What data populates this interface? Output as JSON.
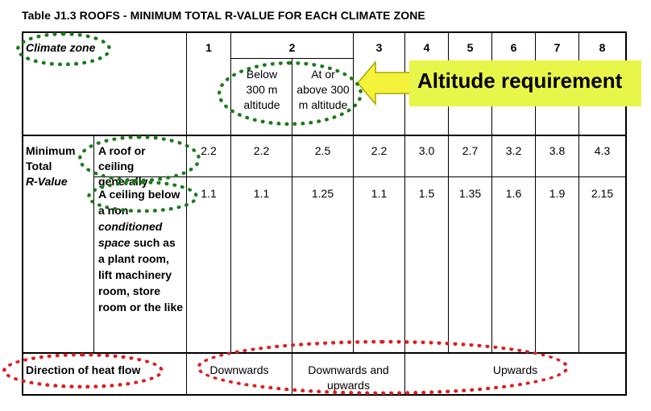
{
  "table": {
    "title": "Table J1.3 ROOFS - MINIMUM TOTAL R-VALUE FOR EACH CLIMATE ZONE",
    "climate_zone_label": "Climate zone",
    "zones": [
      "1",
      "2",
      "3",
      "4",
      "5",
      "6",
      "7",
      "8"
    ],
    "zone2_sub": [
      "Below 300 m altitude",
      "At or above 300 m altitude"
    ],
    "row_group_label_1": "Minimum Total",
    "row_group_label_2": "R-Value",
    "rows": [
      {
        "label": "A roof or ceiling generally",
        "values": [
          "2.2",
          "2.2",
          "2.5",
          "2.2",
          "3.0",
          "2.7",
          "3.2",
          "3.8",
          "4.3"
        ]
      },
      {
        "label_parts": [
          "A ceiling below a non-",
          "conditioned space",
          " such as a plant room, lift machinery room, store room or the like"
        ],
        "values": [
          "1.1",
          "1.1",
          "1.25",
          "1.1",
          "1.5",
          "1.35",
          "1.6",
          "1.9",
          "2.15"
        ]
      }
    ],
    "heat_flow_label": "Direction of heat flow",
    "heat_flow": [
      "Downwards",
      "Downwards and upwards",
      "Upwards"
    ]
  },
  "callout": {
    "text": "Altitude requirement",
    "color": "#e8f549",
    "arrow_color": "#f5f23a"
  },
  "annotations": {
    "green_color": "#1a7a1a",
    "red_color": "#e01b1b"
  }
}
